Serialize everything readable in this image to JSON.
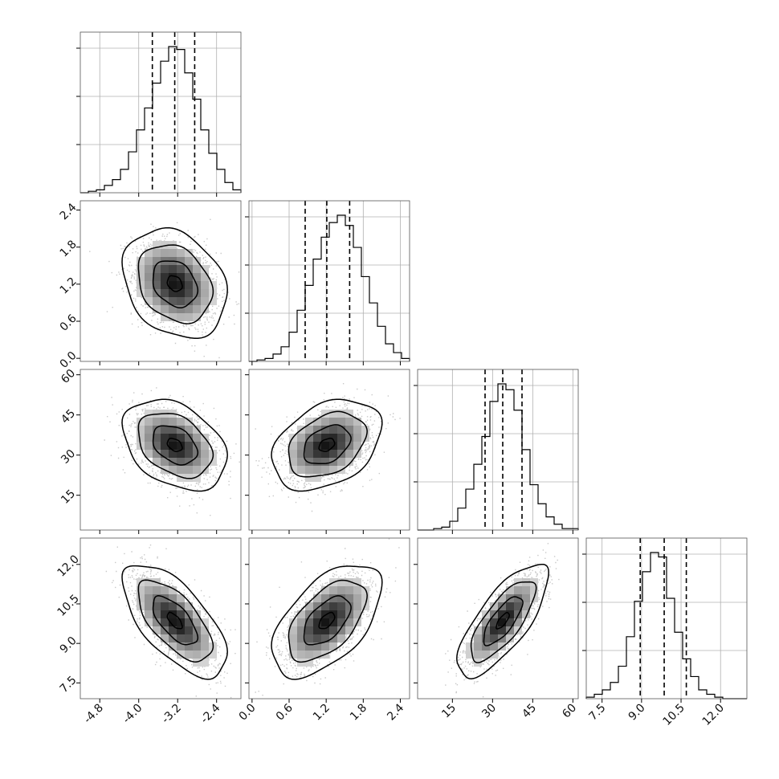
{
  "chart_data": {
    "type": "corner",
    "title": "",
    "params": [
      {
        "range": [
          -5.2,
          -1.9
        ],
        "ticks": [
          "-4.8",
          "-4.0",
          "-3.2",
          "-2.4"
        ],
        "tick_values": [
          -4.8,
          -4.0,
          -3.2,
          -2.4
        ],
        "quantiles": [
          -3.72,
          -3.26,
          -2.85
        ]
      },
      {
        "range": [
          -0.05,
          2.55
        ],
        "ticks": [
          "0.0",
          "0.6",
          "1.2",
          "1.8",
          "2.4"
        ],
        "tick_values": [
          0.0,
          0.6,
          1.2,
          1.8,
          2.4
        ],
        "quantiles": [
          0.86,
          1.21,
          1.58
        ]
      },
      {
        "range": [
          2,
          62
        ],
        "ticks": [
          "15",
          "30",
          "45",
          "60"
        ],
        "tick_values": [
          15,
          30,
          45,
          60
        ],
        "quantiles": [
          27.2,
          33.8,
          41.0
        ]
      },
      {
        "range": [
          6.9,
          13.0
        ],
        "ticks": [
          "7.5",
          "9.0",
          "10.5",
          "12.0"
        ],
        "tick_values": [
          7.5,
          9.0,
          10.5,
          12.0
        ],
        "quantiles": [
          8.95,
          9.86,
          10.7
        ]
      }
    ],
    "histograms": [
      {
        "edges_start": -5.2,
        "bin_width": 0.165,
        "counts": [
          0,
          1,
          2,
          5,
          9,
          16,
          28,
          43,
          58,
          75,
          90,
          100,
          98,
          82,
          64,
          43,
          27,
          16,
          7,
          2
        ]
      },
      {
        "edges_start": -0.05,
        "bin_width": 0.13,
        "counts": [
          0,
          1,
          2,
          5,
          10,
          20,
          35,
          52,
          70,
          85,
          95,
          100,
          93,
          78,
          58,
          40,
          24,
          12,
          6,
          2
        ]
      },
      {
        "edges_start": 2,
        "bin_width": 3.0,
        "counts": [
          0,
          0,
          1,
          2,
          6,
          15,
          28,
          45,
          64,
          88,
          100,
          96,
          82,
          55,
          31,
          18,
          9,
          4,
          1,
          1
        ]
      },
      {
        "edges_start": 6.9,
        "bin_width": 0.305,
        "counts": [
          1,
          3,
          6,
          11,
          22,
          42,
          66,
          86,
          99,
          96,
          68,
          45,
          27,
          15,
          6,
          3,
          1,
          0,
          0,
          0
        ]
      }
    ],
    "pairs": [
      {
        "x": 0,
        "y": 1,
        "corr": -0.25
      },
      {
        "x": 0,
        "y": 2,
        "corr": -0.35
      },
      {
        "x": 1,
        "y": 2,
        "corr": 0.35
      },
      {
        "x": 0,
        "y": 3,
        "corr": -0.65
      },
      {
        "x": 1,
        "y": 3,
        "corr": 0.55
      },
      {
        "x": 2,
        "y": 3,
        "corr": 0.75
      }
    ],
    "grid": true
  }
}
